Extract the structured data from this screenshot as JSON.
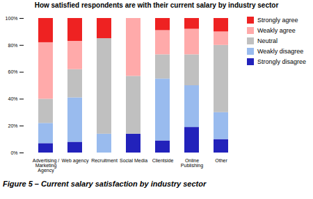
{
  "chart_data": {
    "type": "bar",
    "stacked": true,
    "title": "How satisfied respondents are with their current salary by industry sector",
    "caption": "Figure 5 – Current salary satisfaction by industry sector",
    "categories": [
      "Advertising /\nMarketing\nAgency",
      "Web agency",
      "Recruitment",
      "Social Media",
      "Clientside",
      "Online\nPublishing",
      "Other"
    ],
    "series": [
      {
        "name": "Strongly disagree",
        "color": "#2222bb",
        "values": [
          7,
          8,
          0,
          14,
          9,
          19,
          10
        ]
      },
      {
        "name": "Weakly disagree",
        "color": "#99bbee",
        "values": [
          15,
          33,
          14,
          0,
          46,
          31,
          20
        ]
      },
      {
        "name": "Neutral",
        "color": "#c0c0c0",
        "values": [
          18,
          21,
          71,
          43,
          18,
          23,
          50
        ]
      },
      {
        "name": "Weakly agree",
        "color": "#ffaaaa",
        "values": [
          42,
          21,
          0,
          43,
          18,
          19,
          10
        ]
      },
      {
        "name": "Strongly agree",
        "color": "#ee2222",
        "values": [
          18,
          17,
          15,
          0,
          9,
          8,
          10
        ]
      }
    ],
    "ylim": [
      0,
      100
    ],
    "yticks": [
      {
        "value": 0,
        "label": "0%"
      },
      {
        "value": 20,
        "label": "20%"
      },
      {
        "value": 40,
        "label": "40%"
      },
      {
        "value": 60,
        "label": "60%"
      },
      {
        "value": 80,
        "label": "80%"
      },
      {
        "value": 100,
        "label": "100%"
      }
    ],
    "grid": false,
    "legend": "right"
  }
}
